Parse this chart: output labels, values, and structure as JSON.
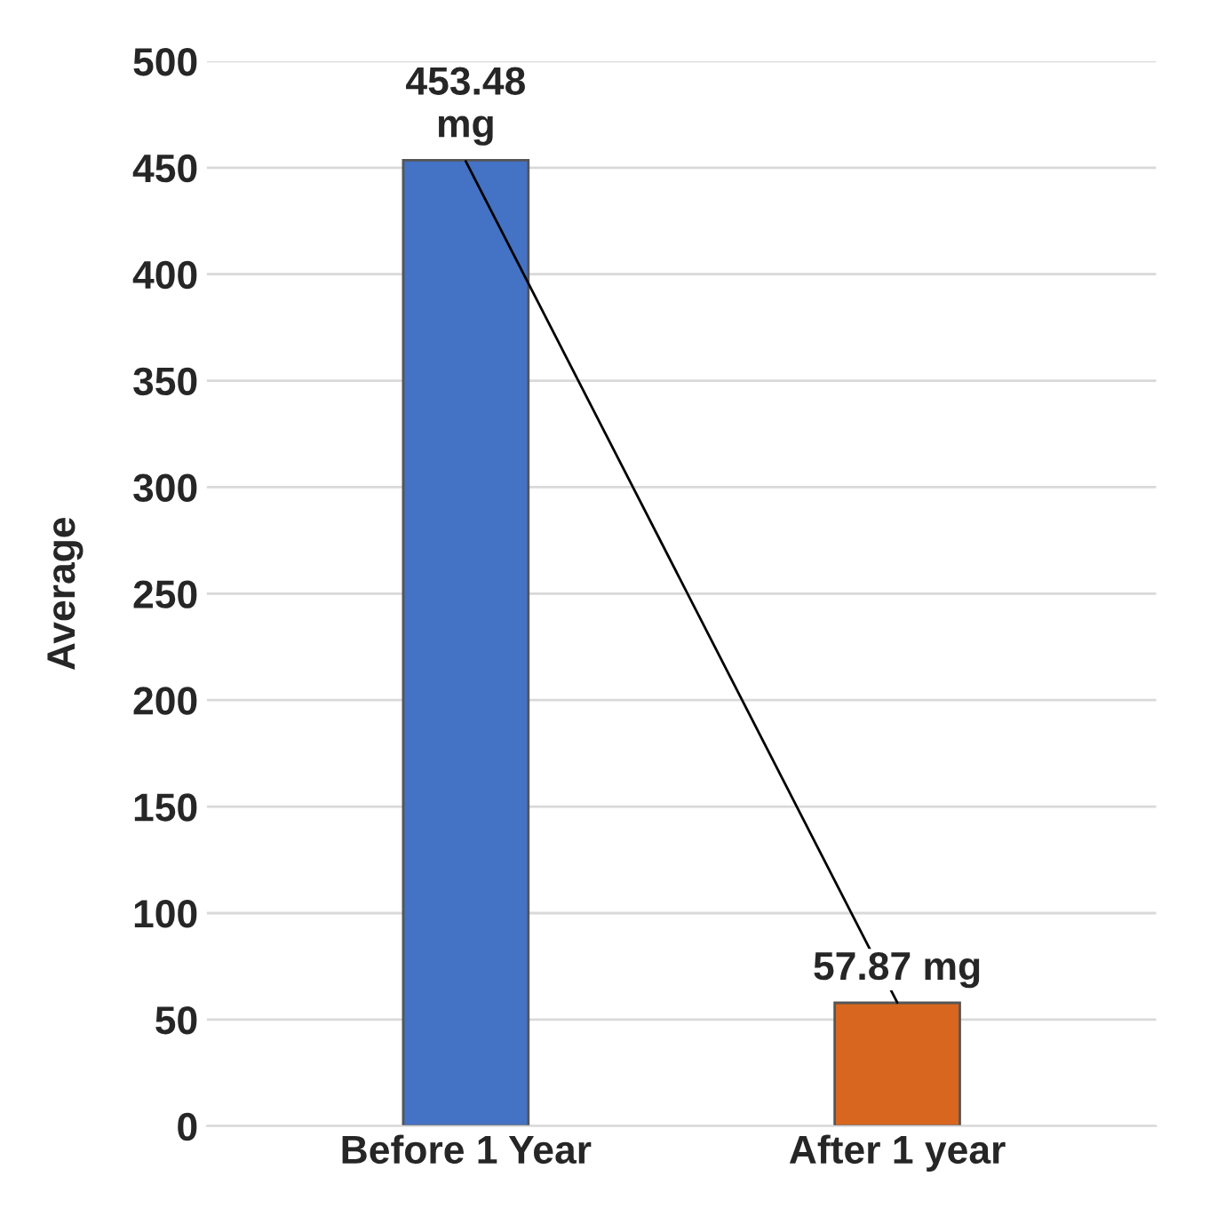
{
  "chart_data": {
    "type": "bar",
    "ylabel": "Average",
    "categories": [
      "Before 1 Year",
      "After 1 year"
    ],
    "series": [
      {
        "colors": [
          "#4472c4",
          "#d9661f"
        ],
        "values": [
          453.48,
          57.87
        ],
        "value_labels": [
          "453.48\nmg",
          "57.87 mg"
        ]
      },
      {
        "type": "line",
        "color": "#000000",
        "values": [
          453,
          58
        ]
      }
    ],
    "ylim": [
      0,
      500
    ],
    "yticks": [
      0,
      50,
      100,
      150,
      200,
      250,
      300,
      350,
      400,
      450,
      500
    ],
    "grid": "y",
    "legend": false
  }
}
